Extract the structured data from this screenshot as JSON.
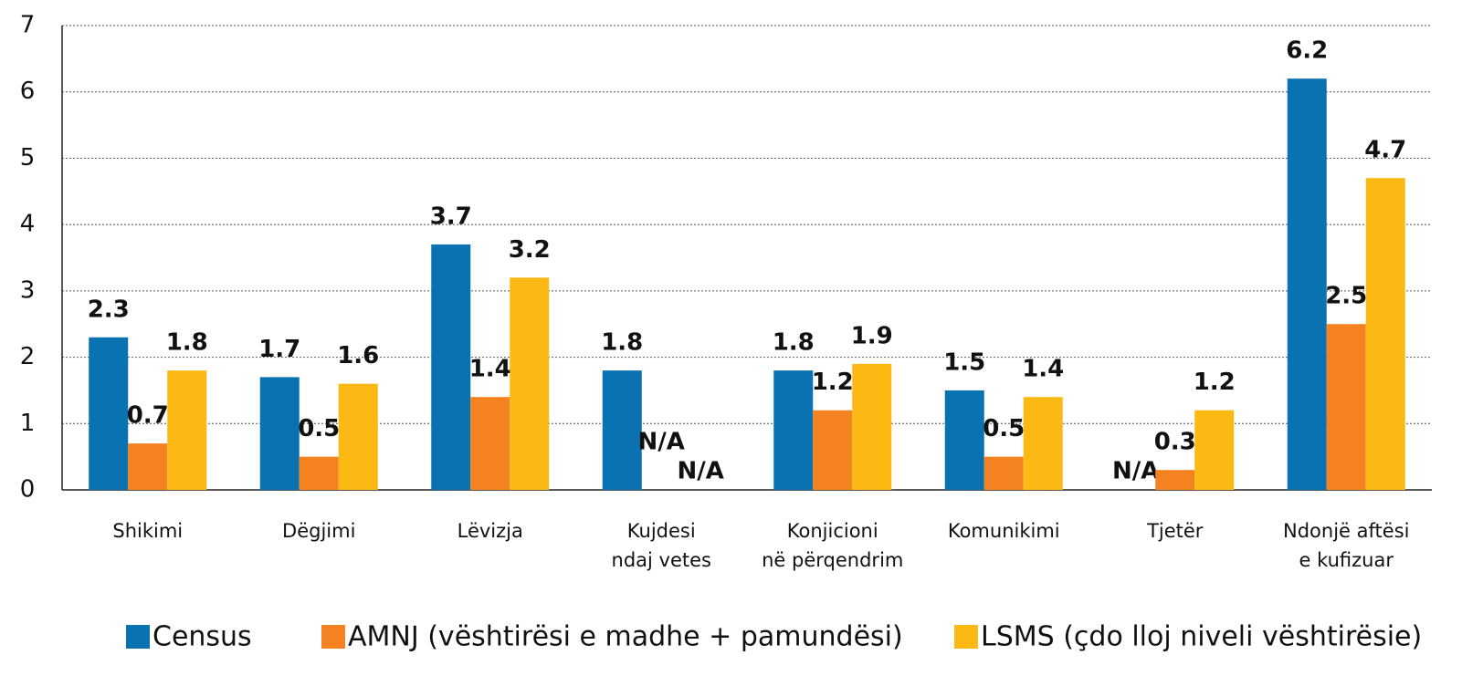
{
  "chart_data": {
    "type": "bar",
    "categories": [
      [
        "Shikimi"
      ],
      [
        "Dëgjimi"
      ],
      [
        "Lëvizja"
      ],
      [
        "Kujdesi",
        "ndaj vetes"
      ],
      [
        "Konjicioni",
        "në përqendrim"
      ],
      [
        "Komunikimi"
      ],
      [
        "Tjetër"
      ],
      [
        "Ndonjë aftësi",
        "e kufizuar"
      ]
    ],
    "series": [
      {
        "name": "Census",
        "color": "#0a72b0",
        "values": [
          2.3,
          1.7,
          3.7,
          1.8,
          1.8,
          1.5,
          null,
          6.2
        ],
        "value_labels": [
          "2.3",
          "1.7",
          "3.7",
          "1.8",
          "1.8",
          "1.5",
          "N/A",
          "6.2"
        ]
      },
      {
        "name": "AMNJ (vështirësi e madhe + pamundësi)",
        "color": "#f58220",
        "values": [
          0.7,
          0.5,
          1.4,
          null,
          1.2,
          0.5,
          0.3,
          2.5
        ],
        "value_labels": [
          "0.7",
          "0.5",
          "1.4",
          "N/A",
          "1.2",
          "0.5",
          "0.3",
          "2.5"
        ]
      },
      {
        "name": "LSMS (çdo lloj niveli vështirësie)",
        "color": "#fdb913",
        "values": [
          1.8,
          1.6,
          3.2,
          null,
          1.9,
          1.4,
          1.2,
          4.7
        ],
        "value_labels": [
          "1.8",
          "1.6",
          "3.2",
          "N/A",
          "1.9",
          "1.4",
          "1.2",
          "4.7"
        ]
      }
    ],
    "ylim": [
      0,
      7
    ],
    "yticks": [
      0,
      1,
      2,
      3,
      4,
      5,
      6,
      7
    ],
    "grid": true
  }
}
